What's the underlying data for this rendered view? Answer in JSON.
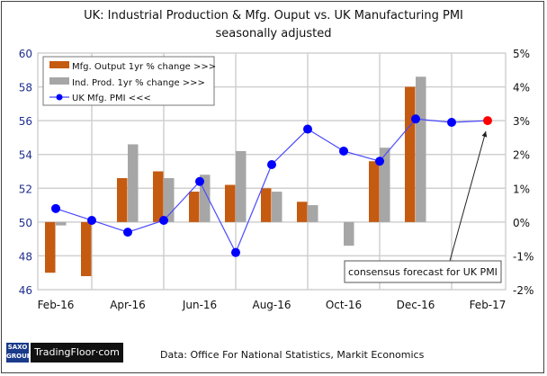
{
  "title": "UK: Industrial Production & Mfg. Ouput vs. UK Manufacturing PMI",
  "subtitle": "seasonally adjusted",
  "source": "Data: Office For National Statistics, Markit Economics",
  "logo": {
    "saxo": "SAXO GROUP",
    "brand": "TradingFloor·com"
  },
  "chart_data": {
    "type": "bar+line",
    "title": "UK: Industrial Production & Mfg. Ouput vs. UK Manufacturing PMI",
    "subtitle": "seasonally adjusted",
    "categories": [
      "Feb-16",
      "Mar-16",
      "Apr-16",
      "May-16",
      "Jun-16",
      "Jul-16",
      "Aug-16",
      "Sep-16",
      "Oct-16",
      "Nov-16",
      "Dec-16",
      "Jan-17",
      "Feb-17"
    ],
    "x_tick_labels": [
      "Feb-16",
      "Apr-16",
      "Jun-16",
      "Aug-16",
      "Oct-16",
      "Dec-16",
      "Feb-17"
    ],
    "left_axis": {
      "ylim": [
        46,
        60
      ],
      "ticks": [
        "46",
        "48",
        "50",
        "52",
        "54",
        "56",
        "58",
        "60"
      ]
    },
    "right_axis": {
      "ylim": [
        -2,
        5
      ],
      "ticks": [
        "-2%",
        "-1%",
        "0%",
        "1%",
        "2%",
        "3%",
        "4%",
        "5%"
      ]
    },
    "grid": true,
    "legend_placement": "top-left",
    "series": [
      {
        "name": "Mfg. Output 1yr % change >>>",
        "type": "bar",
        "axis": "right",
        "color": "#c55a11",
        "values": [
          -1.5,
          -1.6,
          1.3,
          1.5,
          0.9,
          1.1,
          1.0,
          0.6,
          null,
          1.8,
          4.0,
          null,
          null
        ]
      },
      {
        "name": "Ind. Prod. 1yr  % change >>>",
        "type": "bar",
        "axis": "right",
        "color": "#a6a6a6",
        "values": [
          -0.1,
          null,
          2.3,
          1.3,
          1.4,
          2.1,
          0.9,
          0.5,
          -0.7,
          2.2,
          4.3,
          null,
          null
        ]
      },
      {
        "name": "UK Mfg. PMI <<<",
        "type": "line",
        "axis": "left",
        "color": "#0000ff",
        "values": [
          50.8,
          50.1,
          49.4,
          50.1,
          52.4,
          48.2,
          53.4,
          55.5,
          54.2,
          53.6,
          56.1,
          55.9,
          56.0
        ]
      }
    ],
    "forecast_point": {
      "category": "Feb-17",
      "value": 56.0,
      "color": "#ff0000"
    },
    "annotation": "consensus forecast for UK PMI"
  }
}
